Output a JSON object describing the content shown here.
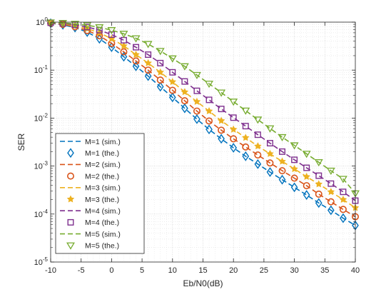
{
  "chart_data": {
    "type": "line",
    "title": "",
    "xlabel": "Eb/N0(dB)",
    "ylabel": "SER",
    "xlim": [
      -10,
      40
    ],
    "ylim": [
      1e-05,
      1
    ],
    "yscale": "log",
    "grid": true,
    "minor_grid": true,
    "legend_position": "bottom-left",
    "x_ticks": [
      -10,
      -5,
      0,
      5,
      10,
      15,
      20,
      25,
      30,
      35,
      40
    ],
    "y_ticks": [
      {
        "value": 1e-05,
        "base": "10",
        "exp": "-5"
      },
      {
        "value": 0.0001,
        "base": "10",
        "exp": "-4"
      },
      {
        "value": 0.001,
        "base": "10",
        "exp": "-3"
      },
      {
        "value": 0.01,
        "base": "10",
        "exp": "-2"
      },
      {
        "value": 0.1,
        "base": "10",
        "exp": "-1"
      },
      {
        "value": 1,
        "base": "10",
        "exp": "0"
      }
    ],
    "x": [
      -10,
      -8,
      -6,
      -4,
      -2,
      0,
      2,
      4,
      6,
      8,
      10,
      12,
      14,
      16,
      18,
      20,
      22,
      24,
      26,
      28,
      30,
      32,
      34,
      36,
      38,
      40
    ],
    "series": [
      {
        "name": "M=1 (sim.)",
        "style": "dashed",
        "color": "#0072BD",
        "values": [
          0.95,
          0.88,
          0.77,
          0.62,
          0.45,
          0.3,
          0.19,
          0.12,
          0.075,
          0.045,
          0.027,
          0.016,
          0.0095,
          0.0058,
          0.0037,
          0.0024,
          0.0016,
          0.0011,
          0.00075,
          0.00052,
          0.00036,
          0.00025,
          0.00017,
          0.00012,
          8.2e-05,
          5.8e-05
        ]
      },
      {
        "name": "M=1 (the.)",
        "marker": "diamond",
        "color": "#0072BD",
        "values": [
          0.95,
          0.88,
          0.77,
          0.62,
          0.45,
          0.3,
          0.19,
          0.12,
          0.075,
          0.045,
          0.027,
          0.016,
          0.0095,
          0.0058,
          0.0037,
          0.0024,
          0.0016,
          0.0011,
          0.00075,
          0.00052,
          0.00036,
          0.00025,
          0.00017,
          0.00012,
          8.2e-05,
          5.8e-05
        ]
      },
      {
        "name": "M=2 (sim.)",
        "style": "dashed",
        "color": "#D95319",
        "values": [
          0.96,
          0.9,
          0.8,
          0.67,
          0.52,
          0.36,
          0.24,
          0.155,
          0.1,
          0.062,
          0.038,
          0.023,
          0.014,
          0.0087,
          0.0056,
          0.0037,
          0.0025,
          0.0017,
          0.00116,
          0.0008,
          0.00056,
          0.00039,
          0.00026,
          0.00018,
          0.000125,
          8.8e-05
        ]
      },
      {
        "name": "M=2 (the.)",
        "marker": "circle",
        "color": "#D95319",
        "values": [
          0.96,
          0.9,
          0.8,
          0.67,
          0.52,
          0.36,
          0.24,
          0.155,
          0.1,
          0.062,
          0.038,
          0.023,
          0.014,
          0.0087,
          0.0056,
          0.0037,
          0.0025,
          0.0017,
          0.00116,
          0.0008,
          0.00056,
          0.00039,
          0.00026,
          0.00018,
          0.000125,
          8.8e-05
        ]
      },
      {
        "name": "M=3 (sim.)",
        "style": "dashed",
        "color": "#EDB120",
        "values": [
          0.97,
          0.92,
          0.84,
          0.73,
          0.6,
          0.45,
          0.32,
          0.21,
          0.14,
          0.09,
          0.057,
          0.035,
          0.022,
          0.014,
          0.0088,
          0.0058,
          0.0039,
          0.0026,
          0.0018,
          0.00125,
          0.00087,
          0.0006,
          0.00042,
          0.00029,
          0.0002,
          0.000135
        ]
      },
      {
        "name": "M=3 (the.)",
        "marker": "star",
        "color": "#EDB120",
        "values": [
          0.97,
          0.92,
          0.84,
          0.73,
          0.6,
          0.45,
          0.32,
          0.21,
          0.14,
          0.09,
          0.057,
          0.035,
          0.022,
          0.014,
          0.0088,
          0.0058,
          0.0039,
          0.0026,
          0.0018,
          0.00125,
          0.00087,
          0.0006,
          0.00042,
          0.00029,
          0.0002,
          0.000135
        ]
      },
      {
        "name": "M=4 (sim.)",
        "style": "dashed",
        "color": "#7E2F8E",
        "values": [
          0.97,
          0.94,
          0.88,
          0.79,
          0.68,
          0.55,
          0.42,
          0.3,
          0.21,
          0.14,
          0.09,
          0.058,
          0.037,
          0.024,
          0.0155,
          0.0102,
          0.0068,
          0.0045,
          0.003,
          0.002,
          0.00135,
          0.00092,
          0.00063,
          0.00043,
          0.00029,
          0.00019
        ]
      },
      {
        "name": "M=4 (the.)",
        "marker": "square",
        "color": "#7E2F8E",
        "values": [
          0.97,
          0.94,
          0.88,
          0.79,
          0.68,
          0.55,
          0.42,
          0.3,
          0.21,
          0.14,
          0.09,
          0.058,
          0.037,
          0.024,
          0.0155,
          0.0102,
          0.0068,
          0.0045,
          0.003,
          0.002,
          0.00135,
          0.00092,
          0.00063,
          0.00043,
          0.00029,
          0.00019
        ]
      },
      {
        "name": "M=5 (sim.)",
        "style": "dashed",
        "color": "#77AC30",
        "values": [
          0.98,
          0.96,
          0.92,
          0.86,
          0.78,
          0.68,
          0.57,
          0.46,
          0.35,
          0.25,
          0.175,
          0.12,
          0.079,
          0.052,
          0.034,
          0.022,
          0.0143,
          0.0093,
          0.0061,
          0.004,
          0.0027,
          0.0018,
          0.0012,
          0.0008,
          0.00054,
          0.00027
        ]
      },
      {
        "name": "M=5 (the.)",
        "marker": "triangle-down",
        "color": "#77AC30",
        "values": [
          0.98,
          0.96,
          0.92,
          0.86,
          0.78,
          0.68,
          0.57,
          0.46,
          0.35,
          0.25,
          0.175,
          0.12,
          0.079,
          0.052,
          0.034,
          0.022,
          0.0143,
          0.0093,
          0.0061,
          0.004,
          0.0027,
          0.0018,
          0.0012,
          0.0008,
          0.00054,
          0.00027
        ]
      }
    ]
  }
}
